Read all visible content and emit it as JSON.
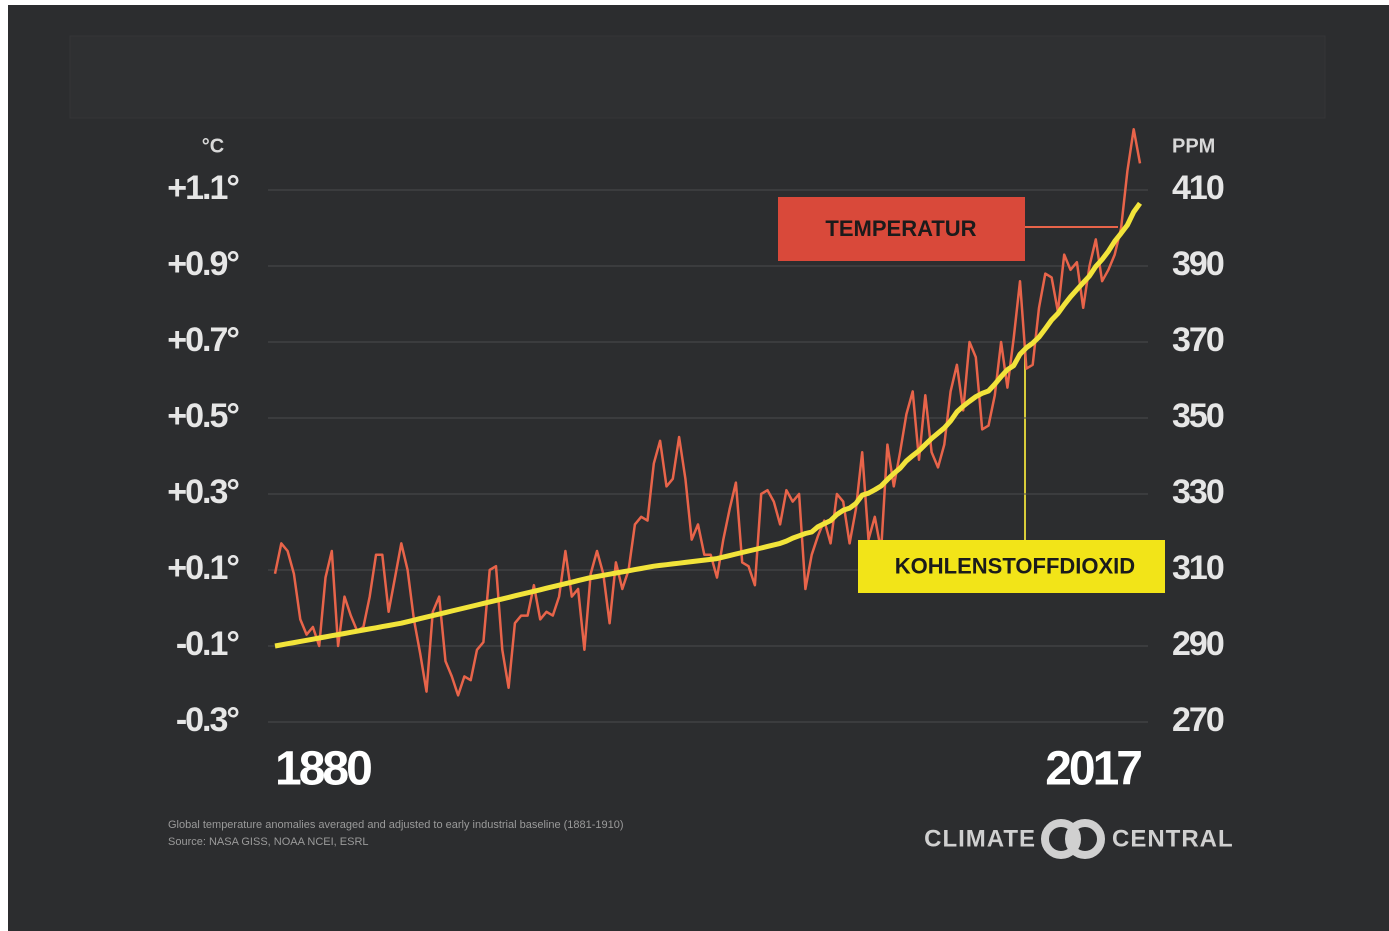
{
  "chart_data": {
    "type": "line",
    "y_label": "°C",
    "y2_label": "PPM",
    "xlim": [
      1880,
      2017
    ],
    "xticks": [
      1880,
      2017
    ],
    "ylim": [
      -0.3,
      1.1
    ],
    "yticks": [
      {
        "value": 1.1,
        "label": "+1.1°"
      },
      {
        "value": 0.9,
        "label": "+0.9°"
      },
      {
        "value": 0.7,
        "label": "+0.7°"
      },
      {
        "value": 0.5,
        "label": "+0.5°"
      },
      {
        "value": 0.3,
        "label": "+0.3°"
      },
      {
        "value": 0.1,
        "label": "+0.1°"
      },
      {
        "value": -0.1,
        "label": "-0.1°"
      },
      {
        "value": -0.3,
        "label": "-0.3°"
      }
    ],
    "y2lim": [
      270,
      410
    ],
    "y2ticks": [
      410,
      390,
      370,
      350,
      330,
      310,
      290,
      270
    ],
    "grid": true,
    "x": [
      1880,
      1881,
      1882,
      1883,
      1884,
      1885,
      1886,
      1887,
      1888,
      1889,
      1890,
      1891,
      1892,
      1893,
      1894,
      1895,
      1896,
      1897,
      1898,
      1899,
      1900,
      1901,
      1902,
      1903,
      1904,
      1905,
      1906,
      1907,
      1908,
      1909,
      1910,
      1911,
      1912,
      1913,
      1914,
      1915,
      1916,
      1917,
      1918,
      1919,
      1920,
      1921,
      1922,
      1923,
      1924,
      1925,
      1926,
      1927,
      1928,
      1929,
      1930,
      1931,
      1932,
      1933,
      1934,
      1935,
      1936,
      1937,
      1938,
      1939,
      1940,
      1941,
      1942,
      1943,
      1944,
      1945,
      1946,
      1947,
      1948,
      1949,
      1950,
      1951,
      1952,
      1953,
      1954,
      1955,
      1956,
      1957,
      1958,
      1959,
      1960,
      1961,
      1962,
      1963,
      1964,
      1965,
      1966,
      1967,
      1968,
      1969,
      1970,
      1971,
      1972,
      1973,
      1974,
      1975,
      1976,
      1977,
      1978,
      1979,
      1980,
      1981,
      1982,
      1983,
      1984,
      1985,
      1986,
      1987,
      1988,
      1989,
      1990,
      1991,
      1992,
      1993,
      1994,
      1995,
      1996,
      1997,
      1998,
      1999,
      2000,
      2001,
      2002,
      2003,
      2004,
      2005,
      2006,
      2007,
      2008,
      2009,
      2010,
      2011,
      2012,
      2013,
      2014,
      2015,
      2016,
      2017
    ],
    "series": [
      {
        "name": "TEMPERATUR",
        "color": "#e8644a",
        "values": [
          0.09,
          0.17,
          0.15,
          0.09,
          -0.03,
          -0.07,
          -0.05,
          -0.1,
          0.08,
          0.15,
          -0.1,
          0.03,
          -0.02,
          -0.06,
          -0.05,
          0.03,
          0.14,
          0.14,
          -0.01,
          0.08,
          0.17,
          0.1,
          -0.03,
          -0.12,
          -0.22,
          -0.01,
          0.03,
          -0.14,
          -0.18,
          -0.23,
          -0.18,
          -0.19,
          -0.11,
          -0.09,
          0.1,
          0.11,
          -0.11,
          -0.21,
          -0.04,
          -0.02,
          -0.02,
          0.06,
          -0.03,
          -0.01,
          -0.02,
          0.03,
          0.15,
          0.03,
          0.05,
          -0.11,
          0.09,
          0.15,
          0.09,
          -0.04,
          0.12,
          0.05,
          0.1,
          0.22,
          0.24,
          0.23,
          0.38,
          0.44,
          0.32,
          0.34,
          0.45,
          0.34,
          0.18,
          0.22,
          0.14,
          0.14,
          0.08,
          0.18,
          0.26,
          0.33,
          0.12,
          0.11,
          0.06,
          0.3,
          0.31,
          0.28,
          0.22,
          0.31,
          0.28,
          0.3,
          0.05,
          0.14,
          0.19,
          0.23,
          0.17,
          0.3,
          0.28,
          0.17,
          0.26,
          0.41,
          0.18,
          0.24,
          0.15,
          0.43,
          0.32,
          0.41,
          0.51,
          0.57,
          0.39,
          0.56,
          0.41,
          0.37,
          0.43,
          0.57,
          0.64,
          0.52,
          0.7,
          0.66,
          0.47,
          0.48,
          0.56,
          0.7,
          0.58,
          0.71,
          0.86,
          0.63,
          0.64,
          0.79,
          0.88,
          0.87,
          0.78,
          0.93,
          0.89,
          0.91,
          0.79,
          0.9,
          0.97,
          0.86,
          0.89,
          0.93,
          1.0,
          1.15,
          1.26,
          1.17
        ]
      },
      {
        "name": "KOHLENSTOFFDIOXID",
        "color": "#f2e43a",
        "axis": "y2",
        "values": [
          290.0,
          290.3,
          290.6,
          290.9,
          291.2,
          291.5,
          291.8,
          292.1,
          292.4,
          292.7,
          293.0,
          293.3,
          293.6,
          293.9,
          294.2,
          294.5,
          294.8,
          295.1,
          295.4,
          295.7,
          296.0,
          296.4,
          296.8,
          297.2,
          297.6,
          298.0,
          298.4,
          298.8,
          299.2,
          299.6,
          300.0,
          300.4,
          300.8,
          301.2,
          301.6,
          302.0,
          302.4,
          302.8,
          303.2,
          303.6,
          304.0,
          304.4,
          304.8,
          305.2,
          305.6,
          306.0,
          306.4,
          306.8,
          307.2,
          307.6,
          308.0,
          308.3,
          308.6,
          308.9,
          309.2,
          309.5,
          309.8,
          310.1,
          310.4,
          310.7,
          311.0,
          311.2,
          311.4,
          311.6,
          311.8,
          312.0,
          312.2,
          312.4,
          312.6,
          312.8,
          313.0,
          313.4,
          313.8,
          314.2,
          314.6,
          315.0,
          315.4,
          315.8,
          316.2,
          316.6,
          317.0,
          317.6,
          318.4,
          319.0,
          319.6,
          320.0,
          321.4,
          322.2,
          323.0,
          324.6,
          325.7,
          326.3,
          327.5,
          329.7,
          330.2,
          331.1,
          332.1,
          333.8,
          335.4,
          336.8,
          338.7,
          340.1,
          341.4,
          343.0,
          344.6,
          346.0,
          347.4,
          349.2,
          351.6,
          353.1,
          354.4,
          355.6,
          356.5,
          357.1,
          358.9,
          360.9,
          362.7,
          363.8,
          366.8,
          368.5,
          369.7,
          371.3,
          373.5,
          375.8,
          377.5,
          379.8,
          381.9,
          383.8,
          385.6,
          387.4,
          389.9,
          391.7,
          393.9,
          396.5,
          398.6,
          400.8,
          404.2,
          406.5
        ]
      }
    ],
    "notes": [
      "Global temperature anomalies averaged and adjusted to early industrial baseline (1881-1910)",
      "Source: NASA GISS, NOAA NCEI, ESRL"
    ],
    "logo": [
      "CLIMATE",
      "CENTRAL"
    ]
  }
}
